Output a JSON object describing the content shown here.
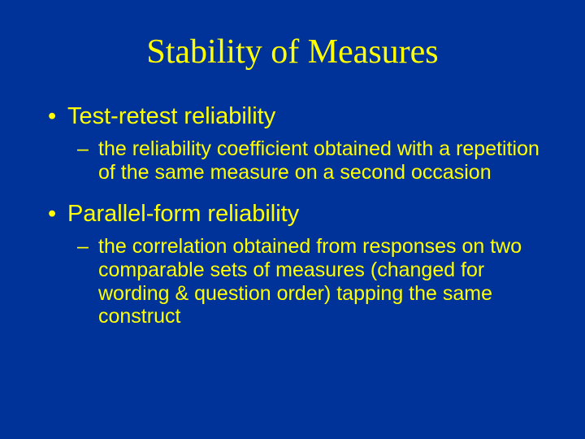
{
  "slide": {
    "title": "Stability of Measures",
    "background_color": "#003399",
    "text_color": "#ffff00",
    "title_font": "Times New Roman",
    "body_font": "Arial",
    "title_fontsize": 42,
    "bullet_main_fontsize": 29,
    "bullet_sub_fontsize": 25,
    "bullets": [
      {
        "main": "Test-retest reliability",
        "sub": "the reliability coefficient obtained with a repetition of the same measure on a second occasion"
      },
      {
        "main": "Parallel-form reliability",
        "sub": "the correlation obtained from responses on two comparable sets of measures (changed for wording & question order) tapping the same construct"
      }
    ]
  }
}
